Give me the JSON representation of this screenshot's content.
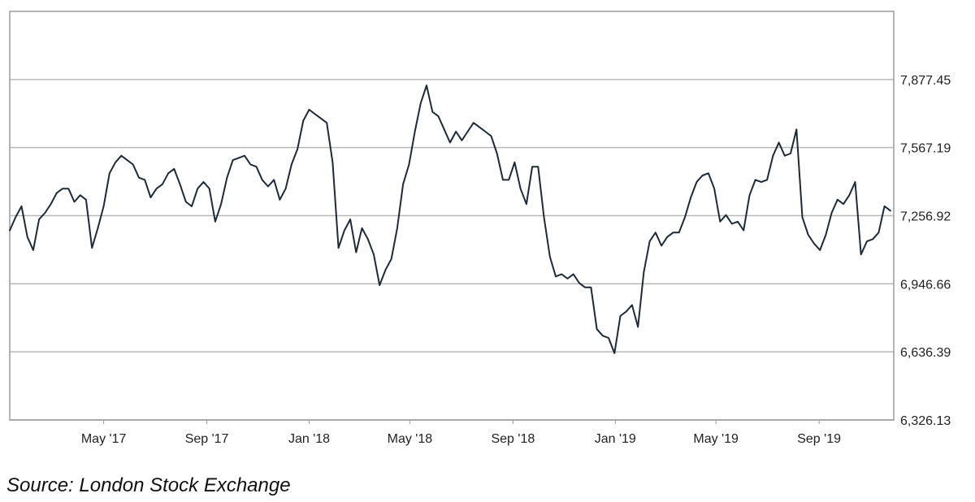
{
  "source_note": "Source: London Stock Exchange",
  "colors": {
    "line": "#1c2a3a",
    "grid": "#b7b7b7",
    "frame": "#9a9a9a",
    "text": "#222222"
  },
  "chart_data": {
    "type": "line",
    "title": "",
    "xlabel": "",
    "ylabel": "",
    "ylim": [
      6326.13,
      8187.71
    ],
    "xlim": [
      "2017-01-09",
      "2019-11-29"
    ],
    "y_axis_side": "right",
    "grid": "horizontal",
    "y_ticks": [
      {
        "value": 6326.13,
        "label": "6,326.13"
      },
      {
        "value": 6636.39,
        "label": "6,636.39"
      },
      {
        "value": 6946.66,
        "label": "6,946.66"
      },
      {
        "value": 7256.92,
        "label": "7,256.92"
      },
      {
        "value": 7567.19,
        "label": "7,567.19"
      },
      {
        "value": 7877.45,
        "label": "7,877.45"
      }
    ],
    "x_ticks": [
      {
        "date": "2017-05-01",
        "label": "May '17"
      },
      {
        "date": "2017-09-01",
        "label": "Sep '17"
      },
      {
        "date": "2018-01-01",
        "label": "Jan '18"
      },
      {
        "date": "2018-05-01",
        "label": "May '18"
      },
      {
        "date": "2018-09-01",
        "label": "Sep '18"
      },
      {
        "date": "2019-01-01",
        "label": "Jan '19"
      },
      {
        "date": "2019-05-01",
        "label": "May '19"
      },
      {
        "date": "2019-09-01",
        "label": "Sep '19"
      }
    ],
    "series": [
      {
        "x": [
          "2017-01-09",
          "2017-01-16",
          "2017-01-23",
          "2017-01-30",
          "2017-02-06",
          "2017-02-13",
          "2017-02-20",
          "2017-02-27",
          "2017-03-06",
          "2017-03-13",
          "2017-03-20",
          "2017-03-27",
          "2017-04-03",
          "2017-04-10",
          "2017-04-17",
          "2017-04-24",
          "2017-05-01",
          "2017-05-08",
          "2017-05-15",
          "2017-05-22",
          "2017-05-29",
          "2017-06-05",
          "2017-06-12",
          "2017-06-19",
          "2017-06-26",
          "2017-07-03",
          "2017-07-10",
          "2017-07-17",
          "2017-07-24",
          "2017-07-31",
          "2017-08-07",
          "2017-08-14",
          "2017-08-21",
          "2017-08-28",
          "2017-09-04",
          "2017-09-11",
          "2017-09-18",
          "2017-09-25",
          "2017-10-02",
          "2017-10-09",
          "2017-10-16",
          "2017-10-23",
          "2017-10-30",
          "2017-11-06",
          "2017-11-13",
          "2017-11-20",
          "2017-11-27",
          "2017-12-04",
          "2017-12-11",
          "2017-12-18",
          "2017-12-25",
          "2018-01-01",
          "2018-01-08",
          "2018-01-15",
          "2018-01-22",
          "2018-01-29",
          "2018-02-05",
          "2018-02-12",
          "2018-02-19",
          "2018-02-26",
          "2018-03-05",
          "2018-03-12",
          "2018-03-19",
          "2018-03-26",
          "2018-04-02",
          "2018-04-09",
          "2018-04-16",
          "2018-04-23",
          "2018-04-30",
          "2018-05-07",
          "2018-05-14",
          "2018-05-21",
          "2018-05-28",
          "2018-06-04",
          "2018-06-11",
          "2018-06-18",
          "2018-06-25",
          "2018-07-02",
          "2018-07-09",
          "2018-07-16",
          "2018-07-23",
          "2018-07-30",
          "2018-08-06",
          "2018-08-13",
          "2018-08-20",
          "2018-08-27",
          "2018-09-03",
          "2018-09-10",
          "2018-09-17",
          "2018-09-24",
          "2018-10-01",
          "2018-10-08",
          "2018-10-15",
          "2018-10-22",
          "2018-10-29",
          "2018-11-05",
          "2018-11-12",
          "2018-11-19",
          "2018-11-26",
          "2018-12-03",
          "2018-12-10",
          "2018-12-17",
          "2018-12-24",
          "2018-12-31",
          "2019-01-07",
          "2019-01-14",
          "2019-01-21",
          "2019-01-28",
          "2019-02-04",
          "2019-02-11",
          "2019-02-18",
          "2019-02-25",
          "2019-03-04",
          "2019-03-11",
          "2019-03-18",
          "2019-03-25",
          "2019-04-01",
          "2019-04-08",
          "2019-04-15",
          "2019-04-22",
          "2019-04-29",
          "2019-05-06",
          "2019-05-13",
          "2019-05-20",
          "2019-05-27",
          "2019-06-03",
          "2019-06-10",
          "2019-06-17",
          "2019-06-24",
          "2019-07-01",
          "2019-07-08",
          "2019-07-15",
          "2019-07-22",
          "2019-07-29",
          "2019-08-05",
          "2019-08-12",
          "2019-08-19",
          "2019-08-26",
          "2019-09-02",
          "2019-09-09",
          "2019-09-16",
          "2019-09-23",
          "2019-09-30",
          "2019-10-07",
          "2019-10-14",
          "2019-10-21",
          "2019-10-28",
          "2019-11-04",
          "2019-11-11",
          "2019-11-18",
          "2019-11-25"
        ],
        "values": [
          7190,
          7250,
          7300,
          7160,
          7100,
          7240,
          7270,
          7310,
          7360,
          7380,
          7380,
          7320,
          7350,
          7330,
          7110,
          7200,
          7300,
          7450,
          7500,
          7530,
          7510,
          7490,
          7430,
          7420,
          7340,
          7380,
          7400,
          7450,
          7470,
          7400,
          7320,
          7300,
          7380,
          7410,
          7380,
          7230,
          7310,
          7430,
          7510,
          7520,
          7530,
          7490,
          7480,
          7420,
          7390,
          7420,
          7330,
          7380,
          7490,
          7560,
          7690,
          7740,
          7720,
          7700,
          7680,
          7500,
          7110,
          7190,
          7240,
          7090,
          7200,
          7150,
          7080,
          6940,
          7010,
          7060,
          7200,
          7400,
          7490,
          7640,
          7770,
          7850,
          7730,
          7710,
          7650,
          7590,
          7640,
          7600,
          7640,
          7680,
          7660,
          7640,
          7620,
          7540,
          7420,
          7420,
          7500,
          7380,
          7310,
          7480,
          7480,
          7250,
          7070,
          6980,
          6990,
          6970,
          6990,
          6950,
          6930,
          6930,
          6740,
          6710,
          6700,
          6630,
          6800,
          6820,
          6850,
          6750,
          7000,
          7140,
          7180,
          7120,
          7160,
          7180,
          7180,
          7250,
          7340,
          7410,
          7440,
          7450,
          7380,
          7230,
          7260,
          7220,
          7230,
          7190,
          7350,
          7420,
          7410,
          7420,
          7530,
          7590,
          7530,
          7540,
          7650,
          7250,
          7170,
          7130,
          7100,
          7170,
          7270,
          7330,
          7310,
          7350,
          7410,
          7080,
          7140,
          7150,
          7180,
          7300,
          7280
        ]
      }
    ]
  }
}
